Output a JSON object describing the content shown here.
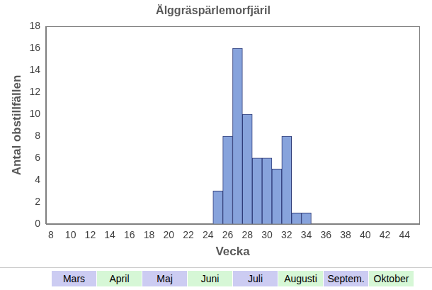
{
  "chart_data": {
    "type": "histogram",
    "title": "Älggräspärlemorfjäril",
    "x_label": "Vecka",
    "y_label": "Antal obstillfällen",
    "bins": [
      24.5,
      25.5,
      26.5,
      27.5,
      28.5,
      29.5,
      30.5,
      31.5,
      32.5,
      33.5,
      34.5
    ],
    "values": [
      3,
      8,
      16,
      10,
      6,
      6,
      5,
      8,
      1,
      1
    ],
    "color": "#87a3dc",
    "xlim": [
      7.5,
      45.5
    ],
    "xticks": [
      8,
      10,
      12,
      14,
      16,
      18,
      20,
      22,
      24,
      26,
      28,
      30,
      32,
      34,
      36,
      38,
      40,
      42,
      44
    ],
    "ylim": [
      0,
      18
    ],
    "yticks": [
      0,
      2,
      4,
      6,
      8,
      10,
      12,
      14,
      16,
      18
    ],
    "grid": false,
    "annotations": [
      "Mars",
      "April",
      "Maj",
      "Juni",
      "Juli",
      "Augusti",
      "Septem.",
      "Oktober"
    ]
  }
}
